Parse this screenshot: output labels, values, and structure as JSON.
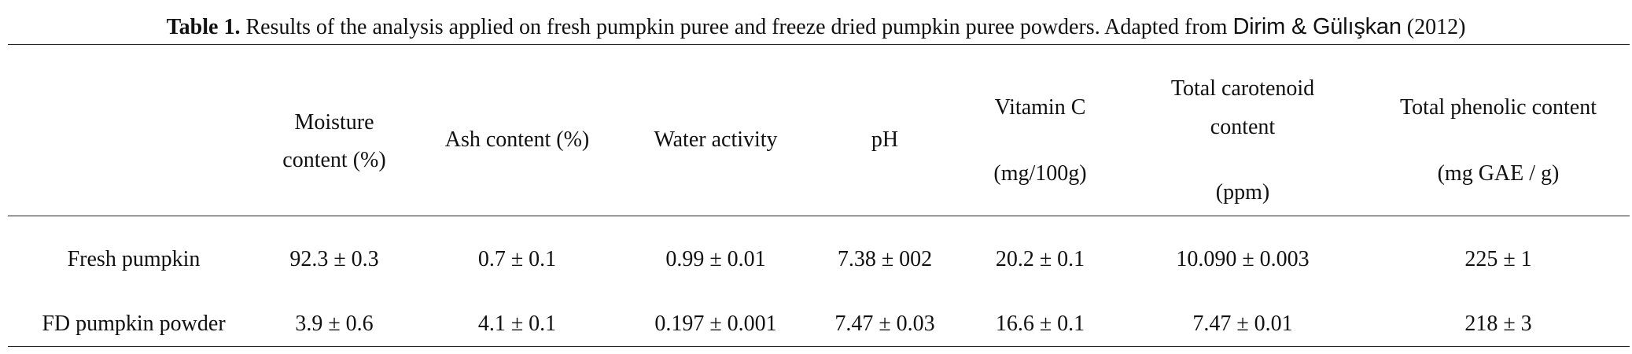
{
  "caption": {
    "label": "Table 1.",
    "text": " Results of the analysis applied on fresh pumpkin puree and freeze dried pumpkin puree powders. Adapted from ",
    "citation": "Dirim & Gülışkan",
    "year": " (2012)"
  },
  "table": {
    "headers": [
      {
        "line1": "Moisture",
        "line2": "content (%)",
        "line3": ""
      },
      {
        "line1": "Ash content (%)",
        "line2": "",
        "line3": ""
      },
      {
        "line1": "Water activity",
        "line2": "",
        "line3": ""
      },
      {
        "line1": "pH",
        "line2": "",
        "line3": ""
      },
      {
        "line1": "Vitamin C",
        "line2": "(mg/100g)",
        "line3": ""
      },
      {
        "line1": "Total carotenoid",
        "line2": "content",
        "line3": "(ppm)"
      },
      {
        "line1": "Total phenolic content",
        "line2": "(mg GAE / g)",
        "line3": ""
      }
    ],
    "rows": [
      {
        "label": "Fresh pumpkin",
        "values": [
          "92.3 ± 0.3",
          "0.7 ± 0.1",
          "0.99 ± 0.01",
          "7.38 ± 002",
          "20.2 ± 0.1",
          "10.090 ± 0.003",
          "225 ± 1"
        ]
      },
      {
        "label": "FD pumpkin powder",
        "values": [
          "3.9 ± 0.6",
          "4.1 ± 0.1",
          "0.197 ± 0.001",
          "7.47 ± 0.03",
          "16.6 ± 0.1",
          "7.47 ± 0.01",
          "218 ± 3"
        ]
      }
    ]
  }
}
